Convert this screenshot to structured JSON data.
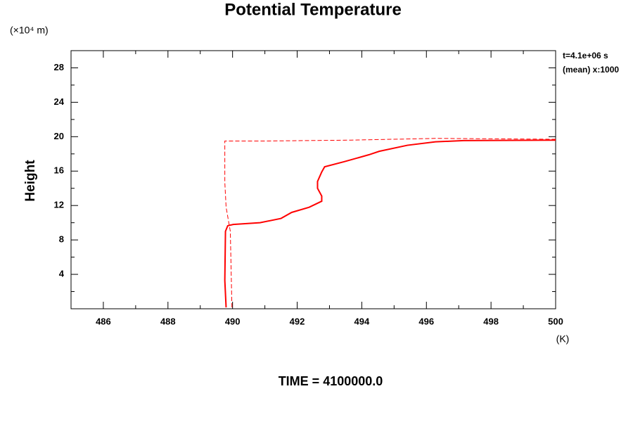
{
  "chart_data": {
    "type": "line",
    "title": "Potential Temperature",
    "y_unit_label": "(×10⁴ m)",
    "ylabel": "Height",
    "x_unit_label": "(K)",
    "annotations": [
      "t=4.1e+06 s",
      "(mean) x:1000"
    ],
    "footer": "TIME = 4100000.0",
    "xlim": [
      485,
      500
    ],
    "ylim": [
      0,
      30
    ],
    "xticks": [
      486,
      488,
      490,
      492,
      494,
      496,
      498,
      500
    ],
    "yticks": [
      4,
      8,
      12,
      16,
      20,
      24,
      28
    ],
    "xminorticks": [
      485,
      487,
      489,
      491,
      493,
      495,
      497,
      499
    ],
    "yminorticks": [
      2,
      6,
      10,
      14,
      18,
      22,
      26,
      30
    ],
    "series": [
      {
        "color": "#ff0000",
        "dash": false,
        "x": [
          489.8,
          489.76,
          489.78,
          489.85,
          490.02,
          490.85,
          491.5,
          491.83,
          492.37,
          492.76,
          492.76,
          492.63,
          492.63,
          492.76,
          492.85,
          493.46,
          494.22,
          494.54,
          495.41,
          496.28,
          497.15,
          500
        ],
        "values": [
          0.16,
          3.3,
          9.0,
          9.65,
          9.8,
          10.0,
          10.5,
          11.2,
          11.8,
          12.5,
          13.1,
          14.0,
          14.8,
          15.9,
          16.5,
          17.1,
          17.9,
          18.3,
          19.0,
          19.4,
          19.55,
          19.6
        ]
      },
      {
        "color": "#ff0000",
        "dash": true,
        "x": [
          489.98,
          489.93,
          489.8,
          489.76,
          489.76,
          491.07,
          493.67,
          496.28,
          500
        ],
        "values": [
          0.16,
          9.0,
          11.8,
          14.7,
          19.5,
          19.5,
          19.6,
          19.8,
          19.7
        ]
      }
    ]
  }
}
